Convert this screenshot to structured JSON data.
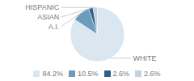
{
  "chart_data": {
    "type": "pie",
    "categories": [
      "WHITE",
      "A.I.",
      "ASIAN",
      "HISPANIC"
    ],
    "values": [
      84.2,
      10.5,
      2.6,
      2.6
    ],
    "value_labels": [
      "84.2%",
      "10.5%",
      "2.6%",
      "2.6%"
    ],
    "colors": [
      "#dae6f0",
      "#6b9dba",
      "#2e6189",
      "#c0d3e3"
    ],
    "legend": "bottom"
  }
}
